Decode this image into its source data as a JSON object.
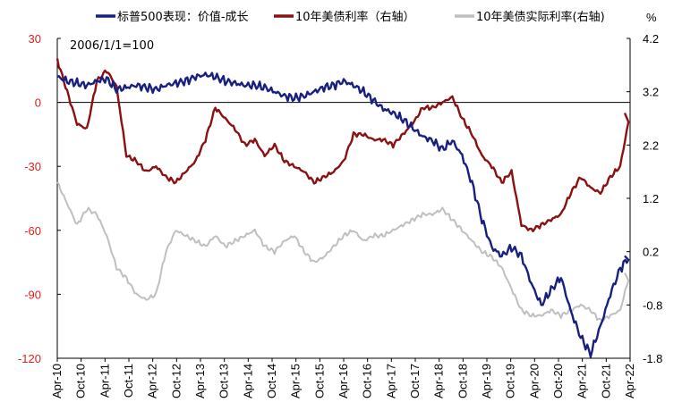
{
  "chart_data": {
    "type": "line",
    "title": "",
    "annotation": "2006/1/1=100",
    "unit_right": "%",
    "left_axis": {
      "min": -120,
      "max": 30,
      "ticks": [
        "30",
        "0",
        "-30",
        "-60",
        "-90",
        "-120"
      ],
      "color": "#e0201c"
    },
    "right_axis": {
      "min": -1.8,
      "max": 4.2,
      "ticks": [
        "4.2",
        "3.2",
        "2.2",
        "1.2",
        "0.2",
        "-0.8",
        "-1.8"
      ],
      "color": "#000000"
    },
    "x_ticks": [
      "Apr-10",
      "Oct-10",
      "Apr-11",
      "Oct-11",
      "Apr-12",
      "Oct-12",
      "Apr-13",
      "Oct-13",
      "Apr-14",
      "Oct-14",
      "Apr-15",
      "Oct-15",
      "Apr-16",
      "Oct-16",
      "Apr-17",
      "Oct-17",
      "Apr-18",
      "Oct-18",
      "Apr-19",
      "Oct-19",
      "Apr-20",
      "Oct-20",
      "Apr-21",
      "Oct-21",
      "Apr-22"
    ],
    "series": [
      {
        "name": "标普500表现：价值-成长",
        "axis": "left",
        "color": "#17207f",
        "values": [
          12,
          10,
          9,
          8,
          10,
          11,
          6,
          7,
          8,
          7,
          6,
          8,
          9,
          10,
          12,
          13,
          12,
          10,
          9,
          8,
          8,
          7,
          5,
          3,
          2,
          3,
          5,
          7,
          8,
          10,
          8,
          5,
          1,
          -3,
          -5,
          -8,
          -12,
          -16,
          -18,
          -22,
          -18,
          -25,
          -38,
          -55,
          -68,
          -72,
          -68,
          -72,
          -85,
          -95,
          -88,
          -82,
          -98,
          -110,
          -118,
          -105,
          -90,
          -78,
          -72
        ]
      },
      {
        "name": "10年美债利率（右轴）",
        "axis": "right",
        "color": "#8b1010",
        "values": [
          3.8,
          3.2,
          2.6,
          2.5,
          3.4,
          3.6,
          3.3,
          2.0,
          1.9,
          1.7,
          1.8,
          1.6,
          1.5,
          1.7,
          1.9,
          2.3,
          2.9,
          2.7,
          2.5,
          2.2,
          2.3,
          2.0,
          2.2,
          1.9,
          1.8,
          1.7,
          1.5,
          1.6,
          1.7,
          1.9,
          2.4,
          2.4,
          2.3,
          2.3,
          2.2,
          2.4,
          2.6,
          2.9,
          2.9,
          3.0,
          3.1,
          2.7,
          2.4,
          2.0,
          1.8,
          1.5,
          1.7,
          0.7,
          0.6,
          0.7,
          0.8,
          0.9,
          1.3,
          1.6,
          1.4,
          1.3,
          1.6,
          1.8,
          2.8
        ]
      },
      {
        "name": "10年美债实际利率(右轴)",
        "axis": "right",
        "color": "#bfbfbf",
        "values": [
          1.5,
          1.1,
          0.7,
          1.0,
          0.9,
          0.5,
          -0.1,
          -0.3,
          -0.6,
          -0.7,
          -0.6,
          0.2,
          0.6,
          0.5,
          0.4,
          0.3,
          0.5,
          0.3,
          0.4,
          0.5,
          0.6,
          0.3,
          0.2,
          0.4,
          0.5,
          0.2,
          0.0,
          0.1,
          0.3,
          0.5,
          0.6,
          0.4,
          0.5,
          0.5,
          0.6,
          0.7,
          0.8,
          0.9,
          0.9,
          1.0,
          0.8,
          0.6,
          0.4,
          0.2,
          0.1,
          -0.1,
          -0.5,
          -0.9,
          -1.0,
          -1.0,
          -0.9,
          -1.0,
          -0.9,
          -0.8,
          -0.9,
          -1.1,
          -1.0,
          -0.9,
          -0.2
        ]
      }
    ],
    "legend_position": "top",
    "grid": false
  }
}
